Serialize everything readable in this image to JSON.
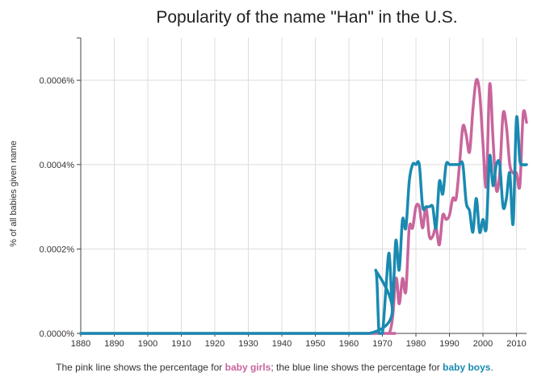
{
  "chart_data": {
    "type": "line",
    "title": "Popularity of the name \"Han\" in the U.S.",
    "ylabel": "% of all babies given name",
    "xlabel": "",
    "xlim": [
      1880,
      2013
    ],
    "ylim": [
      0,
      0.0007
    ],
    "x_ticks": [
      1880,
      1890,
      1900,
      1910,
      1920,
      1930,
      1940,
      1950,
      1960,
      1970,
      1980,
      1990,
      2000,
      2010
    ],
    "x_tick_labels": [
      "1880",
      "1890",
      "1900",
      "1910",
      "1920",
      "1930",
      "1940",
      "1950",
      "1960",
      "1970",
      "1980",
      "1990",
      "2000",
      "2010"
    ],
    "y_ticks": [
      0,
      0.0002,
      0.0004,
      0.0006
    ],
    "y_tick_labels": [
      "0.0000%",
      "0.0002%",
      "0.0004%",
      "0.0006%"
    ],
    "grid": true,
    "series": [
      {
        "name": "baby girls",
        "color": "#c9659c",
        "x": [
          1880,
          1965,
          1972,
          1974,
          1975,
          1976,
          1977,
          1978,
          1979,
          1980,
          1981,
          1982,
          1983,
          1984,
          1985,
          1986,
          1987,
          1988,
          1989,
          1990,
          1991,
          1992,
          1993,
          1994,
          1995,
          1996,
          1997,
          1998,
          1999,
          2000,
          2001,
          2002,
          2003,
          2004,
          2005,
          2006,
          2007,
          2008,
          2009,
          2010,
          2011,
          2012,
          2013
        ],
        "values": [
          0,
          0,
          0,
          0.00013,
          7e-05,
          0.00013,
          0.0001,
          0.00025,
          0.00025,
          0.0003,
          0.0003,
          0.00025,
          0.0003,
          0.00023,
          0.00023,
          0.00025,
          0.00021,
          0.00028,
          0.00027,
          0.00028,
          0.00032,
          0.00032,
          0.0004,
          0.00049,
          0.00047,
          0.00043,
          0.00053,
          0.0006,
          0.00057,
          0.00045,
          0.00035,
          0.00059,
          0.00046,
          0.00034,
          0.00038,
          0.00052,
          0.00049,
          0.0004,
          0.00038,
          0.00038,
          0.00035,
          0.00052,
          0.0005
        ]
      },
      {
        "name": "baby boys",
        "color": "#1a8ab1",
        "x": [
          1880,
          1966,
          1968,
          1969,
          1970,
          1971,
          1972,
          1973,
          1974,
          1975,
          1976,
          1977,
          1978,
          1979,
          1980,
          1981,
          1982,
          1983,
          1984,
          1985,
          1986,
          1987,
          1988,
          1989,
          1990,
          1991,
          1992,
          1993,
          1994,
          1995,
          1996,
          1997,
          1998,
          1999,
          2000,
          2001,
          2002,
          2003,
          2004,
          2005,
          2006,
          2007,
          2008,
          2009,
          2010,
          2011,
          2012,
          2013
        ],
        "values": [
          0,
          0,
          0.00015,
          0,
          0,
          0.0001,
          0.00019,
          7e-05,
          0.00022,
          0.00015,
          0.00027,
          0.00025,
          0.00036,
          0.0004,
          0.0004,
          0.0004,
          0.0003,
          0.0003,
          0.0003,
          0.0003,
          0.00025,
          0.00036,
          0.00033,
          0.0004,
          0.0004,
          0.0004,
          0.0004,
          0.0004,
          0.0004,
          0.00031,
          0.00029,
          0.00024,
          0.00032,
          0.00024,
          0.00027,
          0.00025,
          0.00042,
          0.00035,
          0.0004,
          0.0004,
          0.0003,
          0.00032,
          0.00038,
          0.00026,
          0.00051,
          0.00041,
          0.0004,
          0.0004
        ]
      }
    ]
  },
  "caption": {
    "before": "The pink line shows the percentage for ",
    "girls": "baby girls",
    "middle": "; the blue line shows the percentage for ",
    "boys": "baby boys",
    "after": "."
  }
}
